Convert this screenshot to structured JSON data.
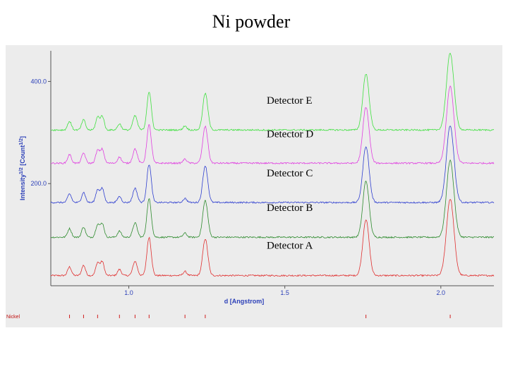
{
  "slide": {
    "title": "Ni powder"
  },
  "chart_data": {
    "type": "line",
    "title": "Ni powder",
    "xlabel": "d [Angstrom]",
    "ylabel": "Intensity^1/2 [Count^1/2]",
    "xlim": [
      0.75,
      2.17
    ],
    "ylim": [
      0,
      460
    ],
    "x_ticks": [
      1.0,
      1.5,
      2.0
    ],
    "x_tick_labels": [
      "1.0",
      "1.5",
      "2.0"
    ],
    "y_ticks": [
      200,
      400
    ],
    "y_tick_labels": [
      "200.0",
      "400.0"
    ],
    "grid": false,
    "baseline_offsets": [
      20,
      95,
      163,
      240,
      305
    ],
    "peaks": [
      {
        "d": 0.81,
        "h": 17,
        "w": 0.006
      },
      {
        "d": 0.855,
        "h": 20,
        "w": 0.006
      },
      {
        "d": 0.9,
        "h": 25,
        "w": 0.006
      },
      {
        "d": 0.915,
        "h": 27,
        "w": 0.006
      },
      {
        "d": 0.97,
        "h": 12,
        "w": 0.006
      },
      {
        "d": 1.02,
        "h": 28,
        "w": 0.007
      },
      {
        "d": 1.065,
        "h": 75,
        "w": 0.007
      },
      {
        "d": 1.18,
        "h": 8,
        "w": 0.006
      },
      {
        "d": 1.245,
        "h": 72,
        "w": 0.008
      },
      {
        "d": 1.76,
        "h": 110,
        "w": 0.01
      },
      {
        "d": 2.03,
        "h": 150,
        "w": 0.012
      }
    ],
    "series": [
      {
        "name": "Detector A",
        "color": "#e03030"
      },
      {
        "name": "Detector B",
        "color": "#2e8b2e"
      },
      {
        "name": "Detector C",
        "color": "#2f3fd0"
      },
      {
        "name": "Detector D",
        "color": "#e040e0"
      },
      {
        "name": "Detector E",
        "color": "#40e040"
      }
    ],
    "reflection_markers": {
      "label": "Nickel",
      "color": "#d02020",
      "positions": [
        0.81,
        0.855,
        0.9,
        0.97,
        1.02,
        1.065,
        1.18,
        1.245,
        1.76,
        2.03
      ]
    }
  }
}
